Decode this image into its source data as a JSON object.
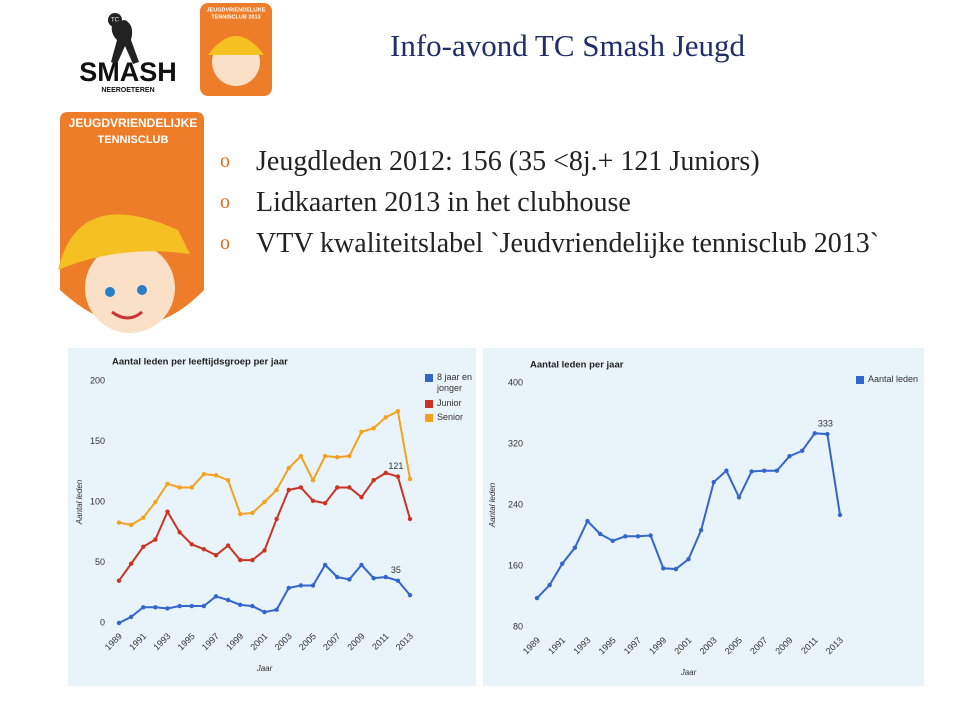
{
  "title": "Info-avond TC Smash Jeugd",
  "logos": {
    "tc": "TC",
    "smash": "SMASH",
    "smash_sub": "NEEROETEREN",
    "small_line1": "JEUGDVRIENDELIJKE",
    "small_line2": "TENNISCLUB 2013",
    "large_line1": "JEUGDVRIENDELIJKE",
    "large_line2": "TENNISCLUB"
  },
  "bullets": [
    "Jeugdleden 2012: 156 (35 <8j.+ 121 Juniors)",
    "Lidkaarten 2013 in het clubhouse",
    "VTV kwaliteitslabel `Jeudvriendelijke tennisclub 2013`"
  ],
  "chart_data": [
    {
      "type": "line",
      "title": "Aantal leden per leeftijdsgroep per jaar",
      "x_label": "Jaar",
      "y_label": "Aantal leden",
      "x": [
        1989,
        1990,
        1991,
        1992,
        1993,
        1994,
        1995,
        1996,
        1997,
        1998,
        1999,
        2000,
        2001,
        2002,
        2003,
        2004,
        2005,
        2006,
        2007,
        2008,
        2009,
        2010,
        2011,
        2012,
        2013
      ],
      "xlim": [
        1989,
        2013
      ],
      "xticks": [
        1989,
        1991,
        1993,
        1995,
        1997,
        1999,
        2001,
        2003,
        2005,
        2007,
        2009,
        2011,
        2013
      ],
      "ylim": [
        0,
        200
      ],
      "yticks": [
        0,
        50,
        100,
        150,
        200
      ],
      "grid": false,
      "legend": "right",
      "series": [
        {
          "name": "8 jaar en jonger",
          "color": "#3366cc",
          "labeled_x": 2012,
          "values": [
            0,
            5,
            13,
            13,
            12,
            14,
            14,
            14,
            22,
            19,
            15,
            14,
            9,
            11,
            29,
            31,
            31,
            48,
            38,
            36,
            48,
            37,
            38,
            35,
            23
          ]
        },
        {
          "name": "Junior",
          "color": "#cc3322",
          "labeled_x": 2012,
          "values": [
            35,
            49,
            63,
            69,
            92,
            75,
            65,
            61,
            56,
            64,
            52,
            52,
            60,
            86,
            110,
            112,
            101,
            99,
            112,
            112,
            104,
            118,
            124,
            121,
            86
          ]
        },
        {
          "name": "Senior",
          "color": "#f4a21e",
          "values": [
            83,
            81,
            87,
            100,
            115,
            112,
            112,
            123,
            122,
            118,
            90,
            91,
            100,
            110,
            128,
            138,
            118,
            138,
            137,
            138,
            158,
            161,
            170,
            175,
            119
          ]
        }
      ]
    },
    {
      "type": "line",
      "title": "Aantal leden per jaar",
      "x_label": "Jaar",
      "y_label": "Aantal leden",
      "x": [
        1989,
        1990,
        1991,
        1992,
        1993,
        1994,
        1995,
        1996,
        1997,
        1998,
        1999,
        2000,
        2001,
        2002,
        2003,
        2004,
        2005,
        2006,
        2007,
        2008,
        2009,
        2010,
        2011,
        2012,
        2013
      ],
      "xlim": [
        1989,
        2013
      ],
      "xticks": [
        1989,
        1991,
        1993,
        1995,
        1997,
        1999,
        2001,
        2003,
        2005,
        2007,
        2009,
        2011,
        2013
      ],
      "ylim": [
        80,
        400
      ],
      "yticks": [
        80,
        160,
        240,
        320,
        400
      ],
      "grid": false,
      "legend": "right",
      "series": [
        {
          "name": "Aantal leden",
          "color": "#3366cc",
          "labeled_x": 2012,
          "values": [
            118,
            135,
            163,
            184,
            219,
            202,
            193,
            199,
            199,
            200,
            157,
            156,
            169,
            207,
            270,
            285,
            250,
            284,
            285,
            285,
            304,
            311,
            334,
            333,
            227
          ]
        }
      ]
    }
  ]
}
